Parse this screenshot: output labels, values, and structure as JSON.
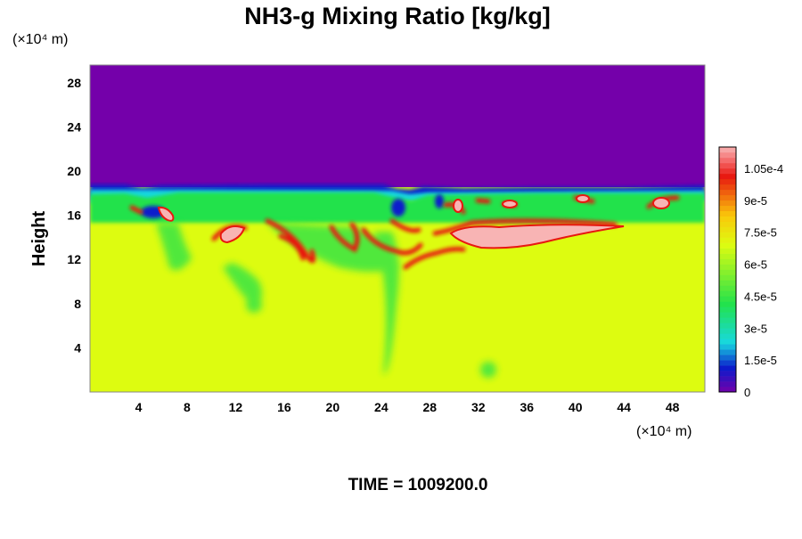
{
  "chart_data": {
    "type": "heatmap",
    "title": "NH3-g Mixing Ratio [kg/kg]",
    "ylabel": "Height",
    "x_unit_label": "(×10⁴ m)",
    "y_unit_label": "(×10⁴ m)",
    "x_ticks": [
      "4",
      "8",
      "12",
      "16",
      "20",
      "24",
      "28",
      "32",
      "36",
      "40",
      "44",
      "48"
    ],
    "y_ticks": [
      "4",
      "8",
      "12",
      "16",
      "20",
      "24",
      "28"
    ],
    "colorbar_ticks": [
      "0",
      "1.5e-5",
      "3e-5",
      "4.5e-5",
      "6e-5",
      "7.5e-5",
      "9e-5",
      "1.05e-4"
    ],
    "colorbar_range": [
      0,
      0.000115
    ],
    "footer": "TIME = 1009200.0",
    "colors": {
      "zero": "#7400aa",
      "dark_blue": "#0a1ccc",
      "cyan": "#18d8e0",
      "green": "#22e24c",
      "yellow_green": "#ddfc10",
      "red": "#e81810",
      "pink": "#f8b4b4"
    }
  }
}
